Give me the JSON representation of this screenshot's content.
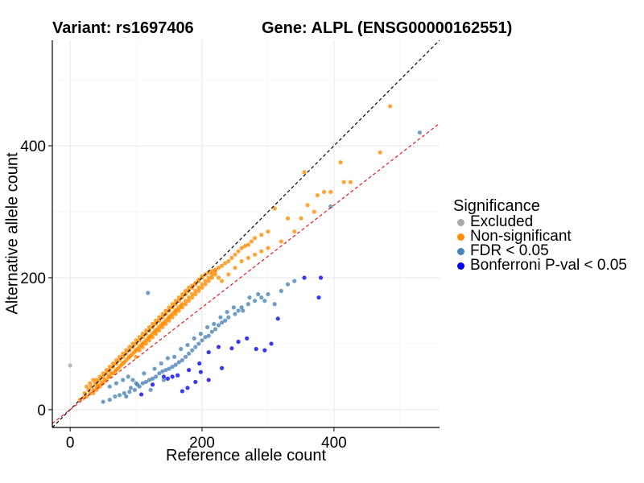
{
  "title": {
    "variant": "Variant: rs1697406",
    "gene": "Gene: ALPL (ENSG00000162551)"
  },
  "legend": {
    "title": "Significance",
    "items": [
      {
        "label": "Excluded",
        "color": "#a9a9a9"
      },
      {
        "label": "Non-significant",
        "color": "#ff8c00"
      },
      {
        "label": "FDR < 0.05",
        "color": "#4682b4"
      },
      {
        "label": "Bonferroni P-val < 0.05",
        "color": "#0000ee"
      }
    ]
  },
  "chart_data": {
    "type": "scatter",
    "xlabel": "Reference allele count",
    "ylabel": "Alternative allele count",
    "xlim": [
      -27,
      560
    ],
    "ylim": [
      -27,
      560
    ],
    "xticks": [
      0,
      200,
      400
    ],
    "yticks": [
      0,
      200,
      400
    ],
    "grid": true,
    "reference_lines": [
      {
        "name": "identity",
        "slope": 1.0,
        "intercept": 0,
        "color": "#000000",
        "dash": true
      },
      {
        "name": "fit",
        "slope": 0.775,
        "intercept": 0,
        "color": "#e41a1c",
        "dash": true
      }
    ],
    "series": [
      {
        "name": "Excluded",
        "points": [
          [
            0,
            67
          ]
        ]
      },
      {
        "name": "Bonferroni P-val < 0.05",
        "points": [
          [
            148,
            47
          ],
          [
            180,
            60
          ],
          [
            230,
            63
          ],
          [
            108,
            23
          ],
          [
            125,
            38
          ],
          [
            142,
            50
          ],
          [
            155,
            50
          ],
          [
            170,
            28
          ],
          [
            178,
            33
          ],
          [
            190,
            42
          ],
          [
            196,
            70
          ],
          [
            210,
            87
          ],
          [
            225,
            95
          ],
          [
            245,
            93
          ],
          [
            268,
            108
          ],
          [
            282,
            92
          ],
          [
            295,
            90
          ],
          [
            315,
            138
          ],
          [
            355,
            200
          ],
          [
            380,
            200
          ],
          [
            377,
            170
          ],
          [
            305,
            100
          ],
          [
            163,
            52
          ],
          [
            198,
            57
          ],
          [
            210,
            45
          ],
          [
            255,
            103
          ]
        ]
      },
      {
        "name": "FDR < 0.05",
        "points": [
          [
            50,
            12
          ],
          [
            60,
            15
          ],
          [
            68,
            20
          ],
          [
            75,
            22
          ],
          [
            82,
            25
          ],
          [
            90,
            27
          ],
          [
            98,
            30
          ],
          [
            105,
            35
          ],
          [
            110,
            40
          ],
          [
            115,
            42
          ],
          [
            120,
            45
          ],
          [
            125,
            47
          ],
          [
            130,
            50
          ],
          [
            135,
            55
          ],
          [
            140,
            58
          ],
          [
            145,
            60
          ],
          [
            150,
            62
          ],
          [
            155,
            65
          ],
          [
            160,
            68
          ],
          [
            165,
            72
          ],
          [
            170,
            75
          ],
          [
            175,
            80
          ],
          [
            180,
            85
          ],
          [
            185,
            90
          ],
          [
            190,
            95
          ],
          [
            195,
            100
          ],
          [
            200,
            105
          ],
          [
            205,
            110
          ],
          [
            210,
            112
          ],
          [
            215,
            118
          ],
          [
            220,
            122
          ],
          [
            225,
            128
          ],
          [
            230,
            132
          ],
          [
            235,
            135
          ],
          [
            240,
            140
          ],
          [
            250,
            145
          ],
          [
            255,
            150
          ],
          [
            260,
            155
          ],
          [
            270,
            160
          ],
          [
            280,
            165
          ],
          [
            290,
            170
          ],
          [
            300,
            175
          ],
          [
            118,
            177
          ],
          [
            95,
            45
          ],
          [
            100,
            40
          ],
          [
            112,
            55
          ],
          [
            128,
            62
          ],
          [
            138,
            70
          ],
          [
            148,
            78
          ],
          [
            158,
            80
          ],
          [
            168,
            92
          ],
          [
            178,
            98
          ],
          [
            188,
            108
          ],
          [
            198,
            115
          ],
          [
            208,
            125
          ],
          [
            218,
            130
          ],
          [
            228,
            140
          ],
          [
            238,
            148
          ],
          [
            248,
            155
          ],
          [
            262,
            150
          ],
          [
            272,
            170
          ],
          [
            285,
            175
          ],
          [
            295,
            165
          ],
          [
            310,
            160
          ],
          [
            320,
            180
          ],
          [
            330,
            190
          ],
          [
            340,
            195
          ],
          [
            395,
            308
          ],
          [
            530,
            420
          ],
          [
            60,
            35
          ],
          [
            70,
            40
          ],
          [
            80,
            45
          ],
          [
            88,
            50
          ],
          [
            92,
            33
          ],
          [
            102,
            38
          ],
          [
            85,
            20
          ],
          [
            142,
            45
          ],
          [
            122,
            30
          ]
        ]
      },
      {
        "name": "Non-significant",
        "points": [
          [
            15,
            15
          ],
          [
            20,
            18
          ],
          [
            22,
            25
          ],
          [
            25,
            20
          ],
          [
            28,
            30
          ],
          [
            30,
            25
          ],
          [
            32,
            35
          ],
          [
            35,
            30
          ],
          [
            38,
            40
          ],
          [
            40,
            35
          ],
          [
            42,
            38
          ],
          [
            45,
            45
          ],
          [
            48,
            40
          ],
          [
            50,
            50
          ],
          [
            52,
            45
          ],
          [
            55,
            55
          ],
          [
            58,
            50
          ],
          [
            60,
            60
          ],
          [
            62,
            55
          ],
          [
            65,
            65
          ],
          [
            68,
            58
          ],
          [
            70,
            70
          ],
          [
            72,
            62
          ],
          [
            75,
            75
          ],
          [
            78,
            68
          ],
          [
            80,
            80
          ],
          [
            82,
            72
          ],
          [
            85,
            85
          ],
          [
            88,
            78
          ],
          [
            90,
            90
          ],
          [
            92,
            82
          ],
          [
            95,
            95
          ],
          [
            98,
            88
          ],
          [
            100,
            100
          ],
          [
            102,
            92
          ],
          [
            105,
            105
          ],
          [
            108,
            98
          ],
          [
            110,
            110
          ],
          [
            112,
            102
          ],
          [
            115,
            115
          ],
          [
            118,
            108
          ],
          [
            120,
            120
          ],
          [
            122,
            112
          ],
          [
            125,
            125
          ],
          [
            128,
            118
          ],
          [
            130,
            130
          ],
          [
            132,
            122
          ],
          [
            135,
            135
          ],
          [
            138,
            128
          ],
          [
            140,
            140
          ],
          [
            142,
            132
          ],
          [
            145,
            145
          ],
          [
            148,
            138
          ],
          [
            150,
            150
          ],
          [
            152,
            142
          ],
          [
            155,
            155
          ],
          [
            158,
            148
          ],
          [
            160,
            160
          ],
          [
            162,
            152
          ],
          [
            165,
            165
          ],
          [
            168,
            158
          ],
          [
            170,
            170
          ],
          [
            175,
            175
          ],
          [
            180,
            180
          ],
          [
            185,
            185
          ],
          [
            190,
            190
          ],
          [
            195,
            195
          ],
          [
            200,
            200
          ],
          [
            205,
            205
          ],
          [
            210,
            208
          ],
          [
            215,
            210
          ],
          [
            220,
            212
          ],
          [
            225,
            215
          ],
          [
            230,
            218
          ],
          [
            235,
            222
          ],
          [
            240,
            225
          ],
          [
            245,
            230
          ],
          [
            250,
            235
          ],
          [
            255,
            240
          ],
          [
            260,
            245
          ],
          [
            265,
            248
          ],
          [
            270,
            250
          ],
          [
            275,
            255
          ],
          [
            280,
            260
          ],
          [
            290,
            265
          ],
          [
            300,
            270
          ],
          [
            310,
            305
          ],
          [
            320,
            255
          ],
          [
            330,
            290
          ],
          [
            340,
            270
          ],
          [
            350,
            290
          ],
          [
            355,
            360
          ],
          [
            360,
            310
          ],
          [
            370,
            300
          ],
          [
            375,
            325
          ],
          [
            385,
            330
          ],
          [
            395,
            330
          ],
          [
            410,
            375
          ],
          [
            415,
            345
          ],
          [
            425,
            345
          ],
          [
            470,
            390
          ],
          [
            485,
            460
          ],
          [
            100,
            80
          ],
          [
            105,
            90
          ],
          [
            110,
            95
          ],
          [
            115,
            100
          ],
          [
            120,
            105
          ],
          [
            125,
            110
          ],
          [
            130,
            115
          ],
          [
            135,
            120
          ],
          [
            140,
            125
          ],
          [
            145,
            130
          ],
          [
            150,
            135
          ],
          [
            155,
            140
          ],
          [
            160,
            145
          ],
          [
            165,
            150
          ],
          [
            170,
            155
          ],
          [
            175,
            160
          ],
          [
            180,
            165
          ],
          [
            185,
            170
          ],
          [
            190,
            175
          ],
          [
            195,
            180
          ],
          [
            200,
            185
          ],
          [
            205,
            190
          ],
          [
            210,
            195
          ],
          [
            215,
            200
          ],
          [
            220,
            205
          ],
          [
            225,
            200
          ],
          [
            230,
            195
          ],
          [
            240,
            205
          ],
          [
            250,
            215
          ],
          [
            260,
            225
          ],
          [
            270,
            230
          ],
          [
            280,
            235
          ],
          [
            290,
            240
          ],
          [
            300,
            245
          ],
          [
            40,
            45
          ],
          [
            45,
            50
          ],
          [
            50,
            55
          ],
          [
            55,
            60
          ],
          [
            60,
            65
          ],
          [
            65,
            70
          ],
          [
            70,
            75
          ],
          [
            75,
            80
          ],
          [
            80,
            85
          ],
          [
            85,
            90
          ],
          [
            90,
            95
          ],
          [
            95,
            100
          ],
          [
            100,
            105
          ],
          [
            105,
            110
          ],
          [
            110,
            115
          ],
          [
            115,
            120
          ],
          [
            120,
            125
          ],
          [
            125,
            130
          ],
          [
            130,
            135
          ],
          [
            135,
            140
          ],
          [
            140,
            145
          ],
          [
            145,
            150
          ],
          [
            150,
            155
          ],
          [
            155,
            160
          ],
          [
            160,
            165
          ],
          [
            165,
            170
          ],
          [
            170,
            175
          ],
          [
            175,
            180
          ],
          [
            180,
            185
          ],
          [
            185,
            188
          ],
          [
            190,
            192
          ],
          [
            195,
            197
          ],
          [
            200,
            202
          ],
          [
            30,
            40
          ],
          [
            35,
            45
          ],
          [
            25,
            35
          ],
          [
            35,
            25
          ],
          [
            40,
            30
          ],
          [
            45,
            35
          ],
          [
            50,
            40
          ],
          [
            55,
            45
          ],
          [
            60,
            50
          ],
          [
            65,
            55
          ],
          [
            70,
            60
          ],
          [
            75,
            65
          ],
          [
            80,
            70
          ],
          [
            85,
            75
          ],
          [
            90,
            80
          ],
          [
            95,
            85
          ],
          [
            100,
            90
          ],
          [
            105,
            95
          ],
          [
            110,
            100
          ],
          [
            115,
            105
          ],
          [
            120,
            110
          ],
          [
            125,
            115
          ],
          [
            130,
            120
          ],
          [
            135,
            125
          ],
          [
            140,
            130
          ],
          [
            145,
            135
          ],
          [
            150,
            140
          ],
          [
            155,
            145
          ],
          [
            160,
            150
          ],
          [
            165,
            155
          ],
          [
            170,
            160
          ],
          [
            175,
            165
          ],
          [
            180,
            170
          ],
          [
            185,
            175
          ],
          [
            190,
            180
          ],
          [
            195,
            185
          ],
          [
            200,
            190
          ],
          [
            205,
            195
          ],
          [
            210,
            200
          ],
          [
            215,
            205
          ],
          [
            220,
            210
          ]
        ]
      }
    ]
  }
}
